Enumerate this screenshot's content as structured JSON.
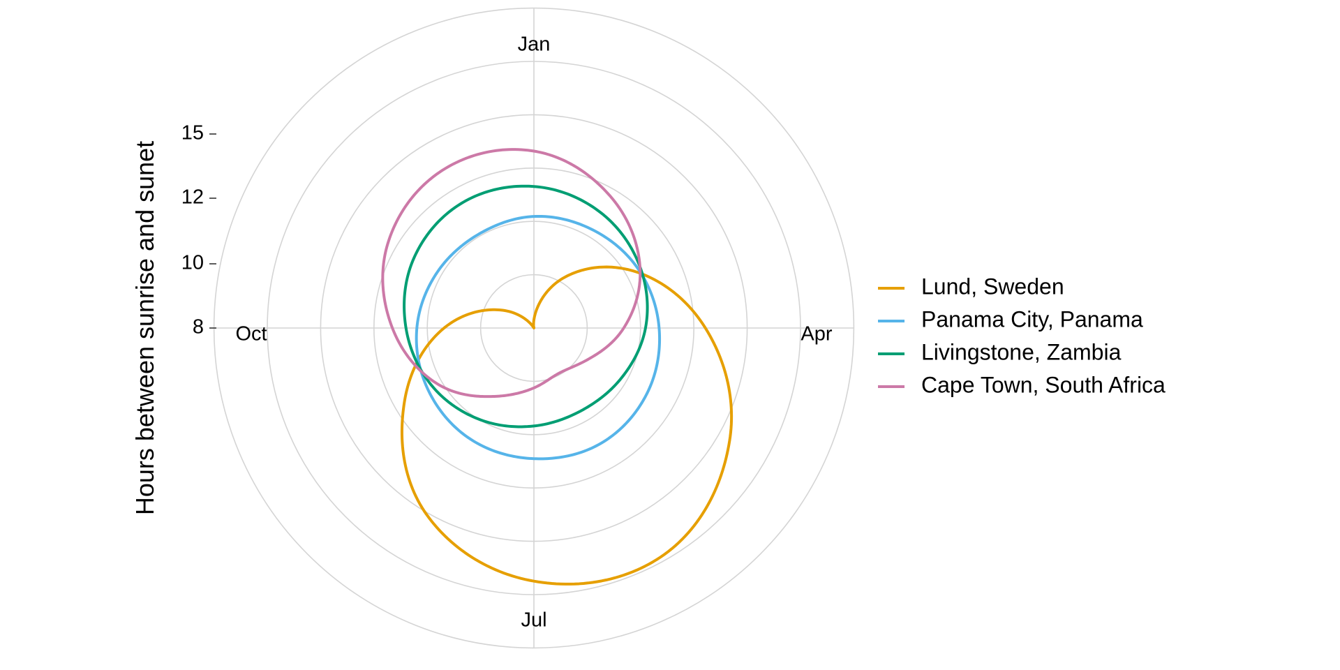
{
  "chart_data": {
    "type": "line",
    "coordinate_system": "polar",
    "title": "",
    "ylabel": "Hours between sunrise and sunet",
    "xlabel": "",
    "month_ticks": [
      "Jan",
      "Apr",
      "Jul",
      "Oct"
    ],
    "radial_ticks": [
      8,
      10,
      12,
      15
    ],
    "grid": true,
    "legend_position": "right",
    "series": [
      {
        "name": "Lund, Sweden",
        "color": "#E69F00",
        "months": [
          "Jan",
          "Feb",
          "Mar",
          "Apr",
          "May",
          "Jun",
          "Jul",
          "Aug",
          "Sep",
          "Oct",
          "Nov",
          "Dec"
        ],
        "values": [
          8.0,
          9.8,
          11.9,
          14.0,
          16.0,
          17.3,
          17.0,
          15.6,
          13.2,
          11.0,
          9.0,
          7.7
        ]
      },
      {
        "name": "Panama City, Panama",
        "color": "#56B4E9",
        "months": [
          "Jan",
          "Feb",
          "Mar",
          "Apr",
          "May",
          "Jun",
          "Jul",
          "Aug",
          "Sep",
          "Oct",
          "Nov",
          "Dec"
        ],
        "values": [
          11.8,
          11.9,
          12.1,
          12.3,
          12.5,
          12.6,
          12.5,
          12.4,
          12.2,
          12.0,
          11.8,
          11.7
        ]
      },
      {
        "name": "Livingstone, Zambia",
        "color": "#009E73",
        "months": [
          "Jan",
          "Feb",
          "Mar",
          "Apr",
          "May",
          "Jun",
          "Jul",
          "Aug",
          "Sep",
          "Oct",
          "Nov",
          "Dec"
        ],
        "values": [
          12.9,
          12.6,
          12.2,
          11.8,
          11.4,
          11.2,
          11.3,
          11.6,
          12.0,
          12.4,
          12.8,
          13.0
        ]
      },
      {
        "name": "Cape Town, South Africa",
        "color": "#CC79A7",
        "months": [
          "Jan",
          "Feb",
          "Mar",
          "Apr",
          "May",
          "Jun",
          "Jul",
          "Aug",
          "Sep",
          "Oct",
          "Nov",
          "Dec"
        ],
        "values": [
          14.2,
          13.3,
          12.2,
          11.0,
          10.0,
          9.6,
          9.9,
          10.6,
          11.8,
          12.9,
          13.9,
          14.4
        ]
      }
    ]
  }
}
